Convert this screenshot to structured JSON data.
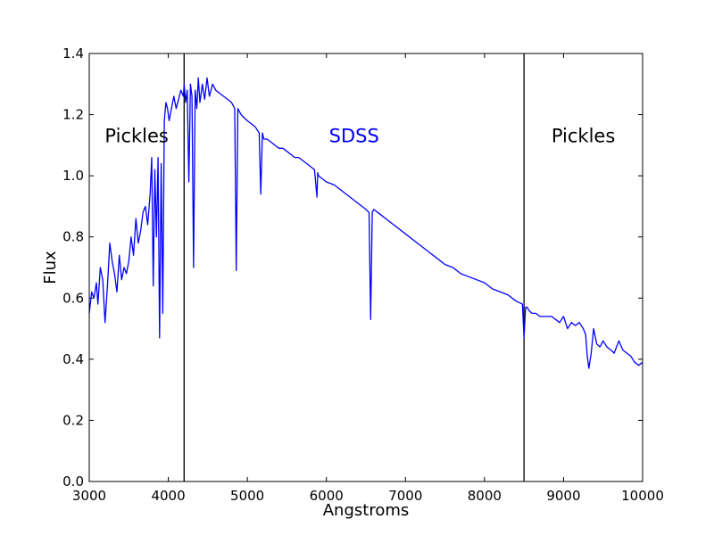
{
  "chart_data": {
    "type": "line",
    "xlabel": "Angstroms",
    "ylabel": "Flux",
    "xlim": [
      3000,
      10000
    ],
    "ylim": [
      0,
      1.4
    ],
    "grid": false,
    "x_ticks": [
      3000,
      4000,
      5000,
      6000,
      7000,
      8000,
      9000,
      10000
    ],
    "y_ticks": [
      "0.0",
      "0.2",
      "0.4",
      "0.6",
      "0.8",
      "1.0",
      "1.2",
      "1.4"
    ],
    "vertical_lines": [
      4200,
      8500
    ],
    "annotations": [
      {
        "text": "Pickles",
        "x": 3600,
        "y": 1.13,
        "color": "#000000"
      },
      {
        "text": "SDSS",
        "x": 6350,
        "y": 1.13,
        "color": "#0000ff"
      },
      {
        "text": "Pickles",
        "x": 9250,
        "y": 1.13,
        "color": "#000000"
      }
    ],
    "series": [
      {
        "color": "#0000ff",
        "x": [
          3000,
          3030,
          3060,
          3090,
          3110,
          3140,
          3170,
          3200,
          3230,
          3260,
          3290,
          3320,
          3350,
          3380,
          3410,
          3440,
          3470,
          3500,
          3530,
          3560,
          3590,
          3620,
          3650,
          3680,
          3710,
          3740,
          3770,
          3790,
          3810,
          3830,
          3850,
          3870,
          3890,
          3910,
          3930,
          3950,
          3970,
          3990,
          4010,
          4040,
          4070,
          4100,
          4130,
          4160,
          4190,
          4200,
          4220,
          4240,
          4260,
          4280,
          4300,
          4320,
          4340,
          4360,
          4380,
          4400,
          4430,
          4460,
          4490,
          4520,
          4560,
          4600,
          4650,
          4700,
          4750,
          4800,
          4840,
          4860,
          4880,
          4920,
          4960,
          5000,
          5050,
          5100,
          5150,
          5170,
          5190,
          5210,
          5250,
          5300,
          5350,
          5400,
          5450,
          5500,
          5550,
          5600,
          5650,
          5700,
          5750,
          5800,
          5850,
          5880,
          5890,
          5900,
          5950,
          6000,
          6100,
          6200,
          6300,
          6400,
          6450,
          6500,
          6540,
          6560,
          6580,
          6600,
          6650,
          6700,
          6800,
          6900,
          7000,
          7100,
          7200,
          7300,
          7400,
          7500,
          7600,
          7700,
          7800,
          7900,
          8000,
          8100,
          8200,
          8300,
          8400,
          8480,
          8500,
          8520,
          8540,
          8560,
          8600,
          8650,
          8700,
          8750,
          8800,
          8850,
          8900,
          8950,
          9000,
          9050,
          9100,
          9150,
          9200,
          9250,
          9280,
          9300,
          9320,
          9350,
          9380,
          9420,
          9460,
          9500,
          9550,
          9600,
          9640,
          9670,
          9700,
          9750,
          9800,
          9850,
          9900,
          9950,
          10000
        ],
        "values": [
          0.55,
          0.62,
          0.6,
          0.65,
          0.58,
          0.7,
          0.66,
          0.52,
          0.64,
          0.78,
          0.72,
          0.68,
          0.62,
          0.74,
          0.66,
          0.7,
          0.68,
          0.72,
          0.8,
          0.74,
          0.86,
          0.78,
          0.82,
          0.88,
          0.9,
          0.84,
          0.94,
          1.06,
          0.64,
          1.02,
          0.8,
          1.06,
          0.47,
          1.04,
          0.55,
          1.18,
          1.24,
          1.22,
          1.18,
          1.22,
          1.26,
          1.22,
          1.25,
          1.28,
          1.26,
          1.3,
          1.24,
          1.28,
          0.98,
          1.3,
          1.26,
          0.7,
          1.28,
          1.22,
          1.32,
          1.24,
          1.3,
          1.25,
          1.32,
          1.26,
          1.3,
          1.28,
          1.27,
          1.26,
          1.25,
          1.24,
          1.22,
          0.69,
          1.22,
          1.2,
          1.19,
          1.18,
          1.17,
          1.16,
          1.14,
          0.94,
          1.14,
          1.12,
          1.12,
          1.11,
          1.1,
          1.09,
          1.09,
          1.08,
          1.07,
          1.06,
          1.06,
          1.05,
          1.04,
          1.03,
          1.02,
          0.93,
          1.01,
          1.0,
          0.99,
          0.98,
          0.97,
          0.95,
          0.93,
          0.91,
          0.9,
          0.89,
          0.88,
          0.53,
          0.88,
          0.89,
          0.88,
          0.87,
          0.85,
          0.83,
          0.81,
          0.79,
          0.77,
          0.75,
          0.73,
          0.71,
          0.7,
          0.68,
          0.67,
          0.66,
          0.65,
          0.63,
          0.62,
          0.61,
          0.59,
          0.58,
          0.47,
          0.57,
          0.57,
          0.56,
          0.55,
          0.55,
          0.54,
          0.54,
          0.54,
          0.54,
          0.53,
          0.52,
          0.54,
          0.5,
          0.52,
          0.51,
          0.52,
          0.5,
          0.48,
          0.41,
          0.37,
          0.42,
          0.5,
          0.45,
          0.44,
          0.46,
          0.44,
          0.43,
          0.42,
          0.44,
          0.46,
          0.43,
          0.42,
          0.41,
          0.39,
          0.38,
          0.39
        ]
      }
    ]
  }
}
